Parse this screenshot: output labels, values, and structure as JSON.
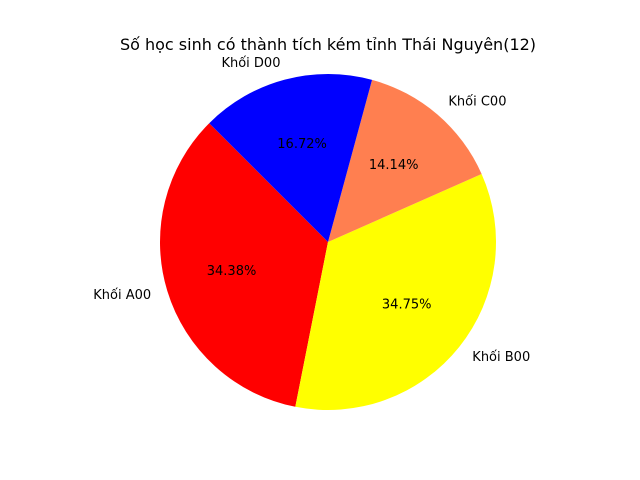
{
  "chart_data": {
    "type": "pie",
    "title": "Số học sinh có thành tích kém tỉnh Thái Nguyên(12)",
    "categories": [
      "Khối A00",
      "Khối B00",
      "Khối C00",
      "Khối D00"
    ],
    "values": [
      34.38,
      34.75,
      14.14,
      16.72
    ],
    "percent_labels": [
      "34.38%",
      "34.75%",
      "14.14%",
      "16.72%"
    ],
    "colors": [
      "#ff0000",
      "#ffff00",
      "#ff7f50",
      "#0000ff"
    ],
    "start_angle_deg": 135,
    "direction": "counterclockwise",
    "legend": "none"
  }
}
